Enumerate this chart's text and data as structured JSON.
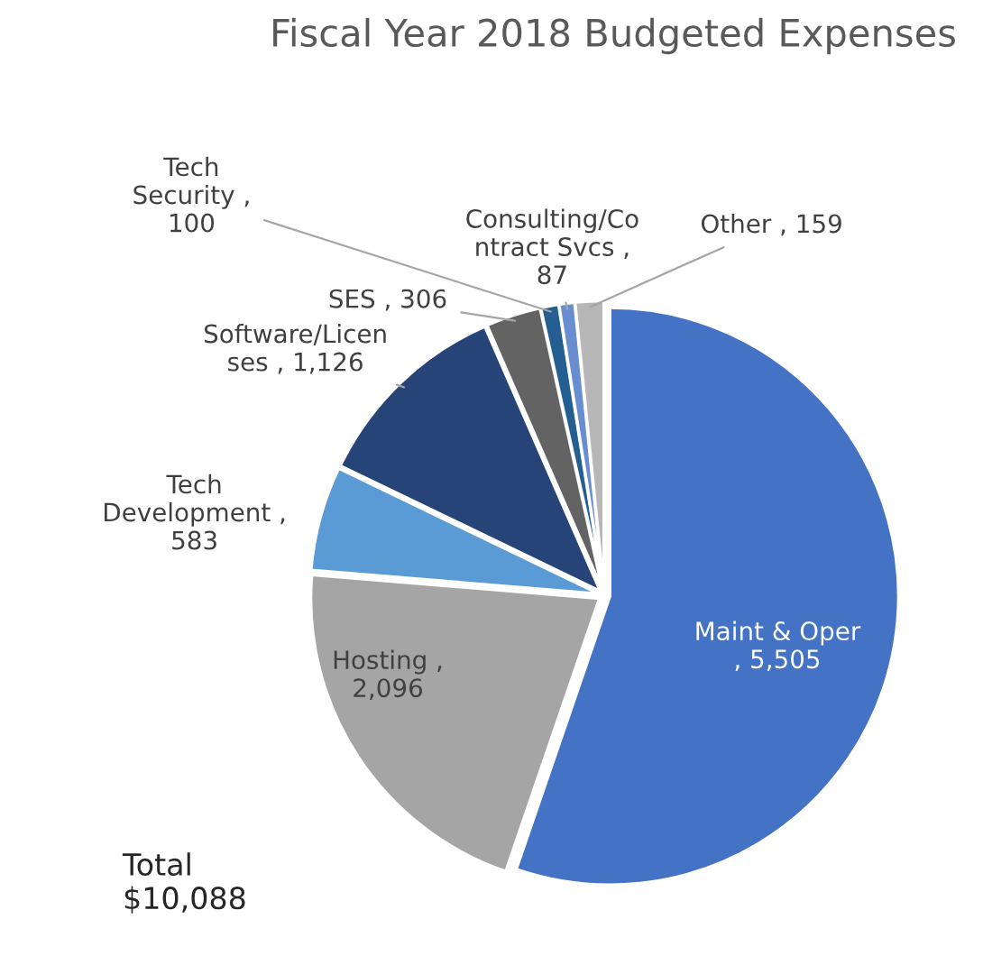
{
  "chart_data": {
    "type": "pie",
    "title": "Fiscal Year 2018 Budgeted Expenses",
    "categories": [
      "Maint & Oper",
      "Hosting",
      "Tech\nDevelopment",
      "Software/Licen\nses",
      "SES",
      "Tech\nSecurity",
      "Consulting/Co\nntract Svcs",
      "Other"
    ],
    "values": [
      5505,
      2096,
      583,
      1126,
      306,
      100,
      87,
      159
    ],
    "value_labels": [
      "\n, 5,505",
      " ,\n2,096",
      " ,\n583",
      " , 1,126",
      " , 306",
      " ,\n100",
      " ,\n87",
      " , 159"
    ],
    "colors": [
      "#4472c4",
      "#a5a5a5",
      "#5b9bd5",
      "#264478",
      "#636363",
      "#255e91",
      "#698ed0",
      "#b7b7b7"
    ],
    "annotations": [
      "Total\n$10,088"
    ],
    "legend": false
  }
}
